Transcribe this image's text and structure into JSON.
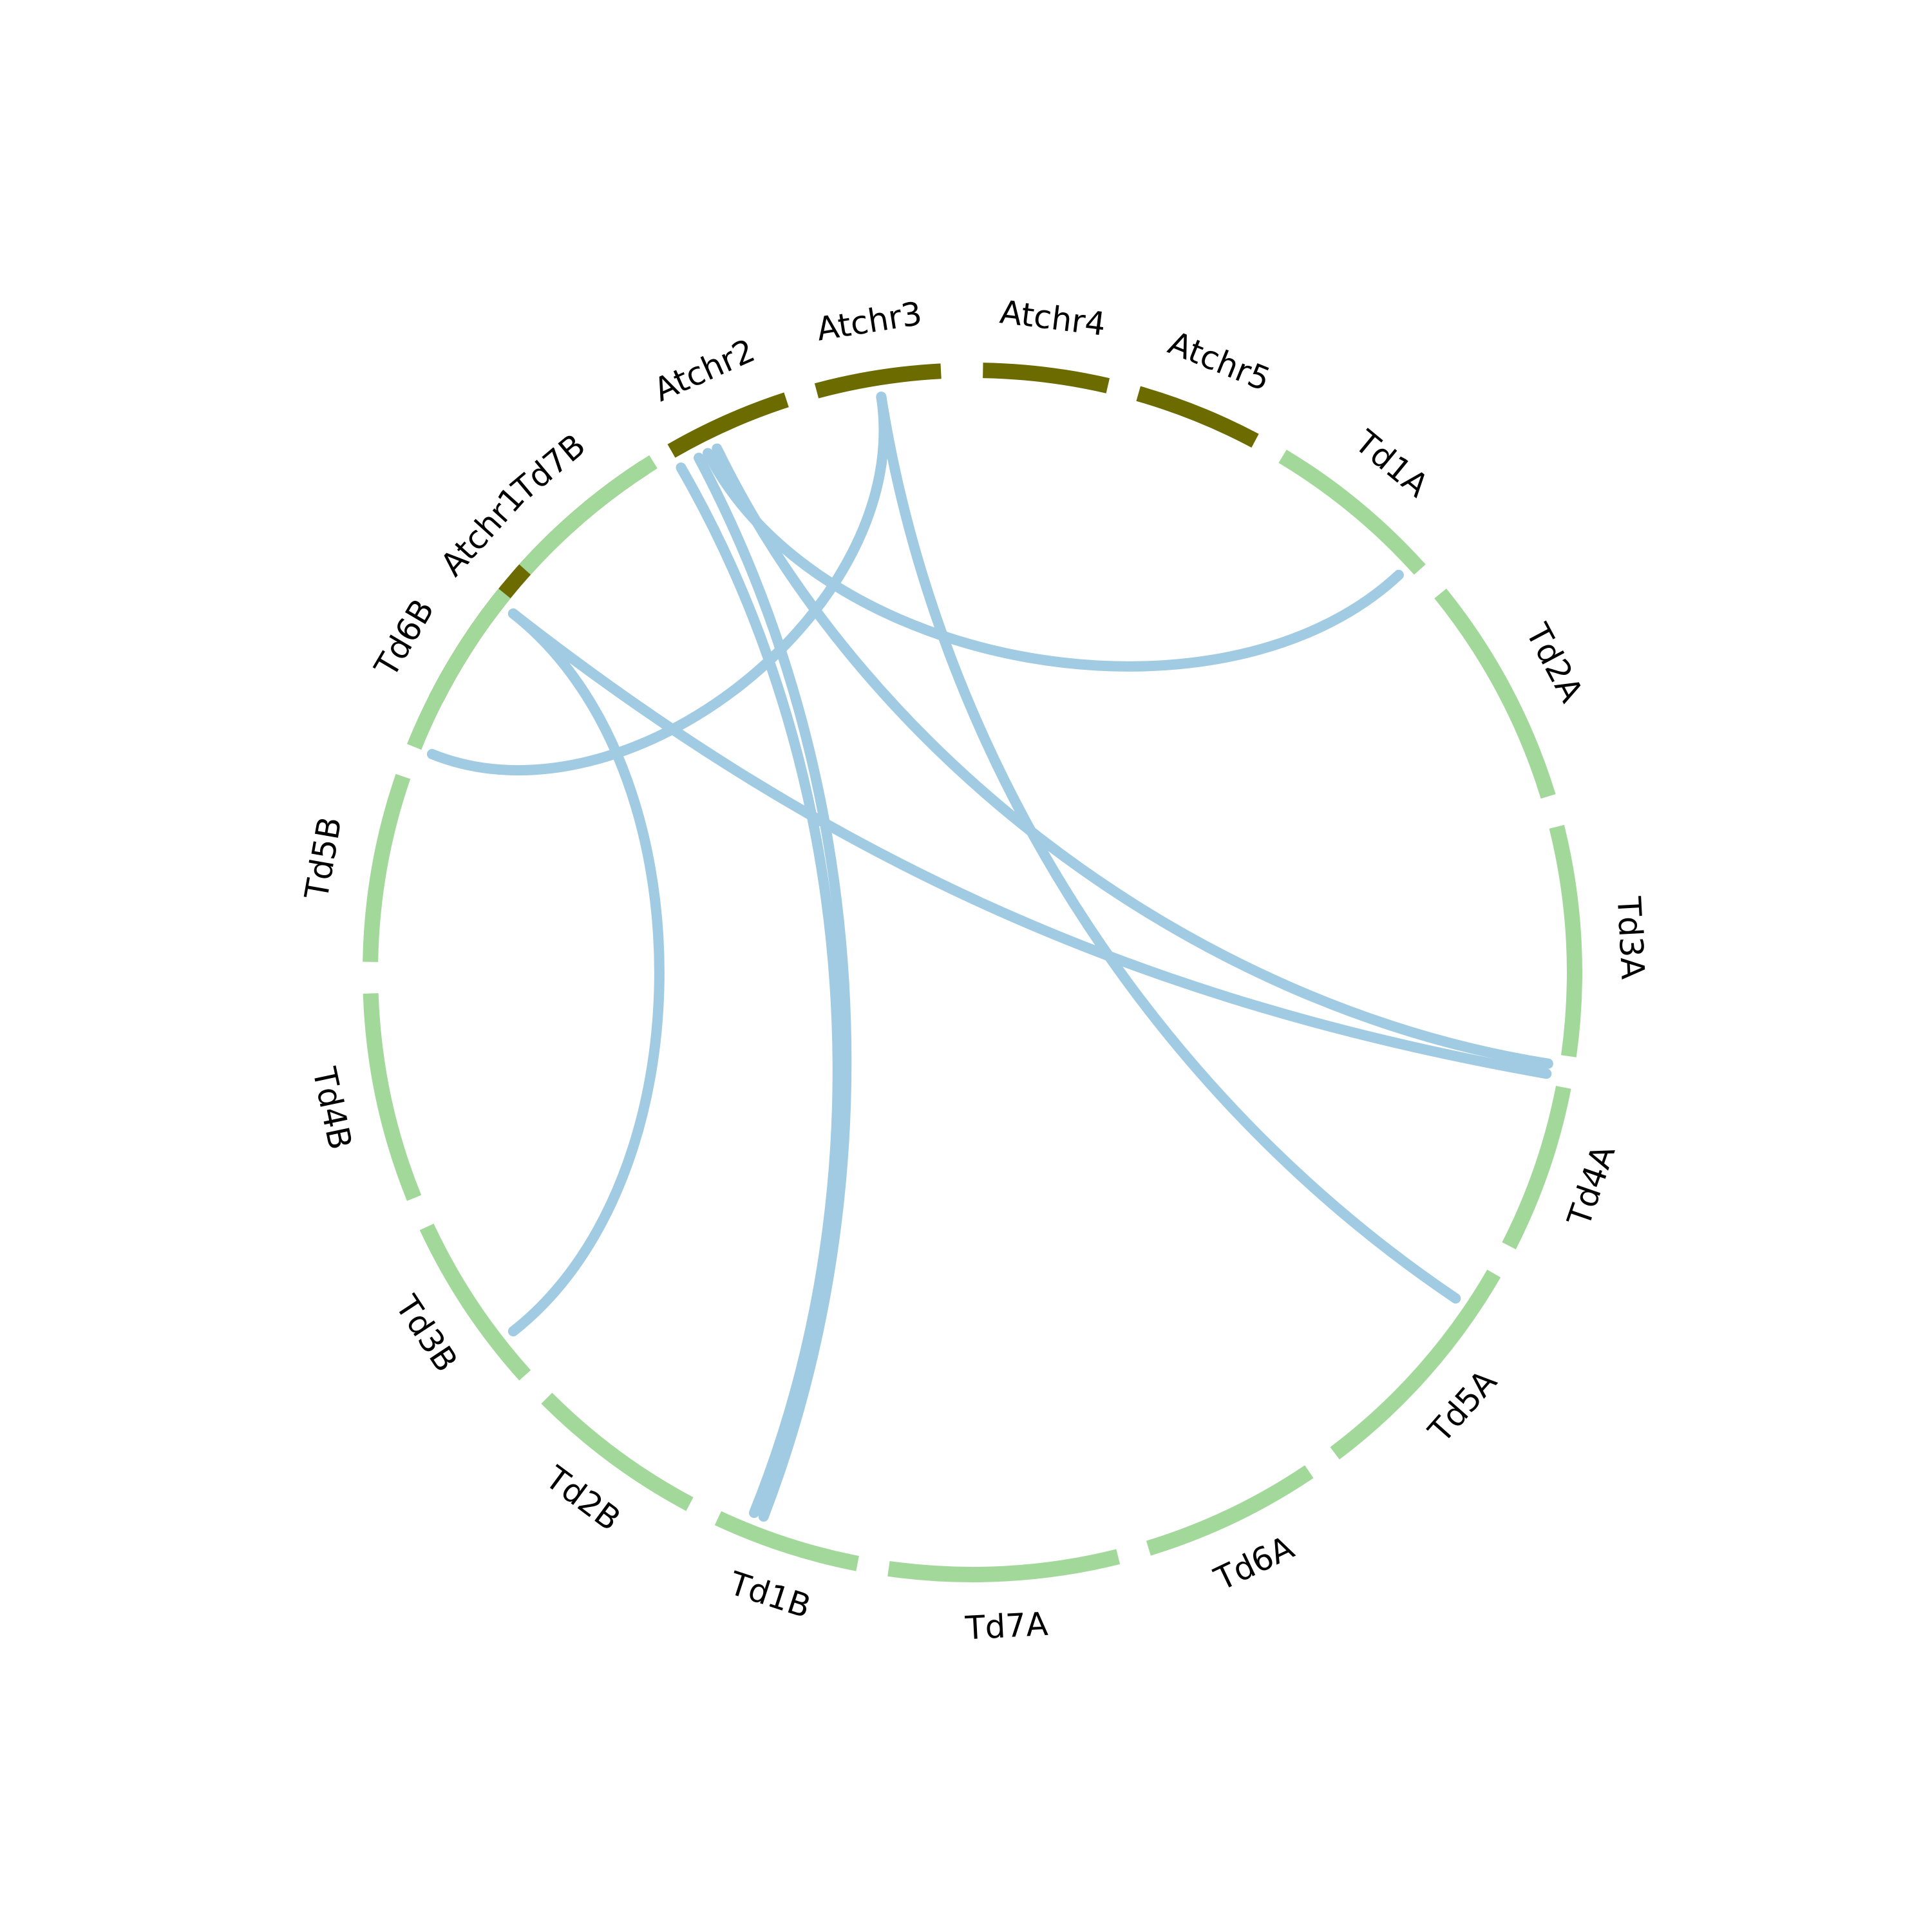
{
  "chart_data": {
    "type": "chord",
    "colors": {
      "arabidopsis": "#6b6b00",
      "wheat": "#a3d89b",
      "link": "#a0cbe2",
      "label": "#000000",
      "background": "#ffffff"
    },
    "chromosomes": [
      {
        "name": "Atchr1",
        "group": "arabidopsis",
        "start_deg": 297,
        "end_deg": 327
      },
      {
        "name": "Atchr2",
        "group": "arabidopsis",
        "start_deg": 330,
        "end_deg": 342
      },
      {
        "name": "Atchr3",
        "group": "arabidopsis",
        "start_deg": 345,
        "end_deg": 357
      },
      {
        "name": "Atchr4",
        "group": "arabidopsis",
        "start_deg": 1,
        "end_deg": 13
      },
      {
        "name": "Atchr5",
        "group": "arabidopsis",
        "start_deg": 16,
        "end_deg": 28
      },
      {
        "name": "Td1A",
        "group": "wheat",
        "start_deg": 31,
        "end_deg": 48
      },
      {
        "name": "Td2A",
        "group": "wheat",
        "start_deg": 51,
        "end_deg": 73
      },
      {
        "name": "Td3A",
        "group": "wheat",
        "start_deg": 76,
        "end_deg": 98
      },
      {
        "name": "Td4A",
        "group": "wheat",
        "start_deg": 101,
        "end_deg": 117
      },
      {
        "name": "Td5A",
        "group": "wheat",
        "start_deg": 120,
        "end_deg": 143
      },
      {
        "name": "Td6A",
        "group": "wheat",
        "start_deg": 146,
        "end_deg": 163
      },
      {
        "name": "Td7A",
        "group": "wheat",
        "start_deg": 166,
        "end_deg": 188
      },
      {
        "name": "Td1B",
        "group": "wheat",
        "start_deg": 191,
        "end_deg": 205
      },
      {
        "name": "Td2B",
        "group": "wheat",
        "start_deg": 208,
        "end_deg": 225
      },
      {
        "name": "Td3B",
        "group": "wheat",
        "start_deg": 228,
        "end_deg": 245
      },
      {
        "name": "Td4B",
        "group": "wheat",
        "start_deg": 248,
        "end_deg": 268
      },
      {
        "name": "Td5B",
        "group": "wheat",
        "start_deg": 271,
        "end_deg": 289
      },
      {
        "name": "Td6B",
        "group": "wheat",
        "start_deg": 292,
        "end_deg": 309
      },
      {
        "name": "Td7B",
        "group": "wheat",
        "start_deg": 312,
        "end_deg": 328
      }
    ],
    "links": [
      {
        "from": "Atchr1",
        "to": "Td3A",
        "from_deg": 308,
        "to_deg": 100
      },
      {
        "from": "Atchr1",
        "to": "Td3B",
        "from_deg": 308,
        "to_deg": 232
      },
      {
        "from": "Atchr2",
        "to": "Td1B",
        "from_deg": 330,
        "to_deg": 202
      },
      {
        "from": "Atchr3",
        "to": "Td1B",
        "from_deg": 332,
        "to_deg": 201
      },
      {
        "from": "Atchr3",
        "to": "Td1A",
        "from_deg": 333,
        "to_deg": 47
      },
      {
        "from": "Atchr3",
        "to": "Td3A",
        "from_deg": 334,
        "to_deg": 99
      },
      {
        "from": "Atchr4",
        "to": "Td5A",
        "from_deg": 351,
        "to_deg": 124
      },
      {
        "from": "Atchr4",
        "to": "Td5B",
        "from_deg": 351,
        "to_deg": 292
      }
    ]
  }
}
